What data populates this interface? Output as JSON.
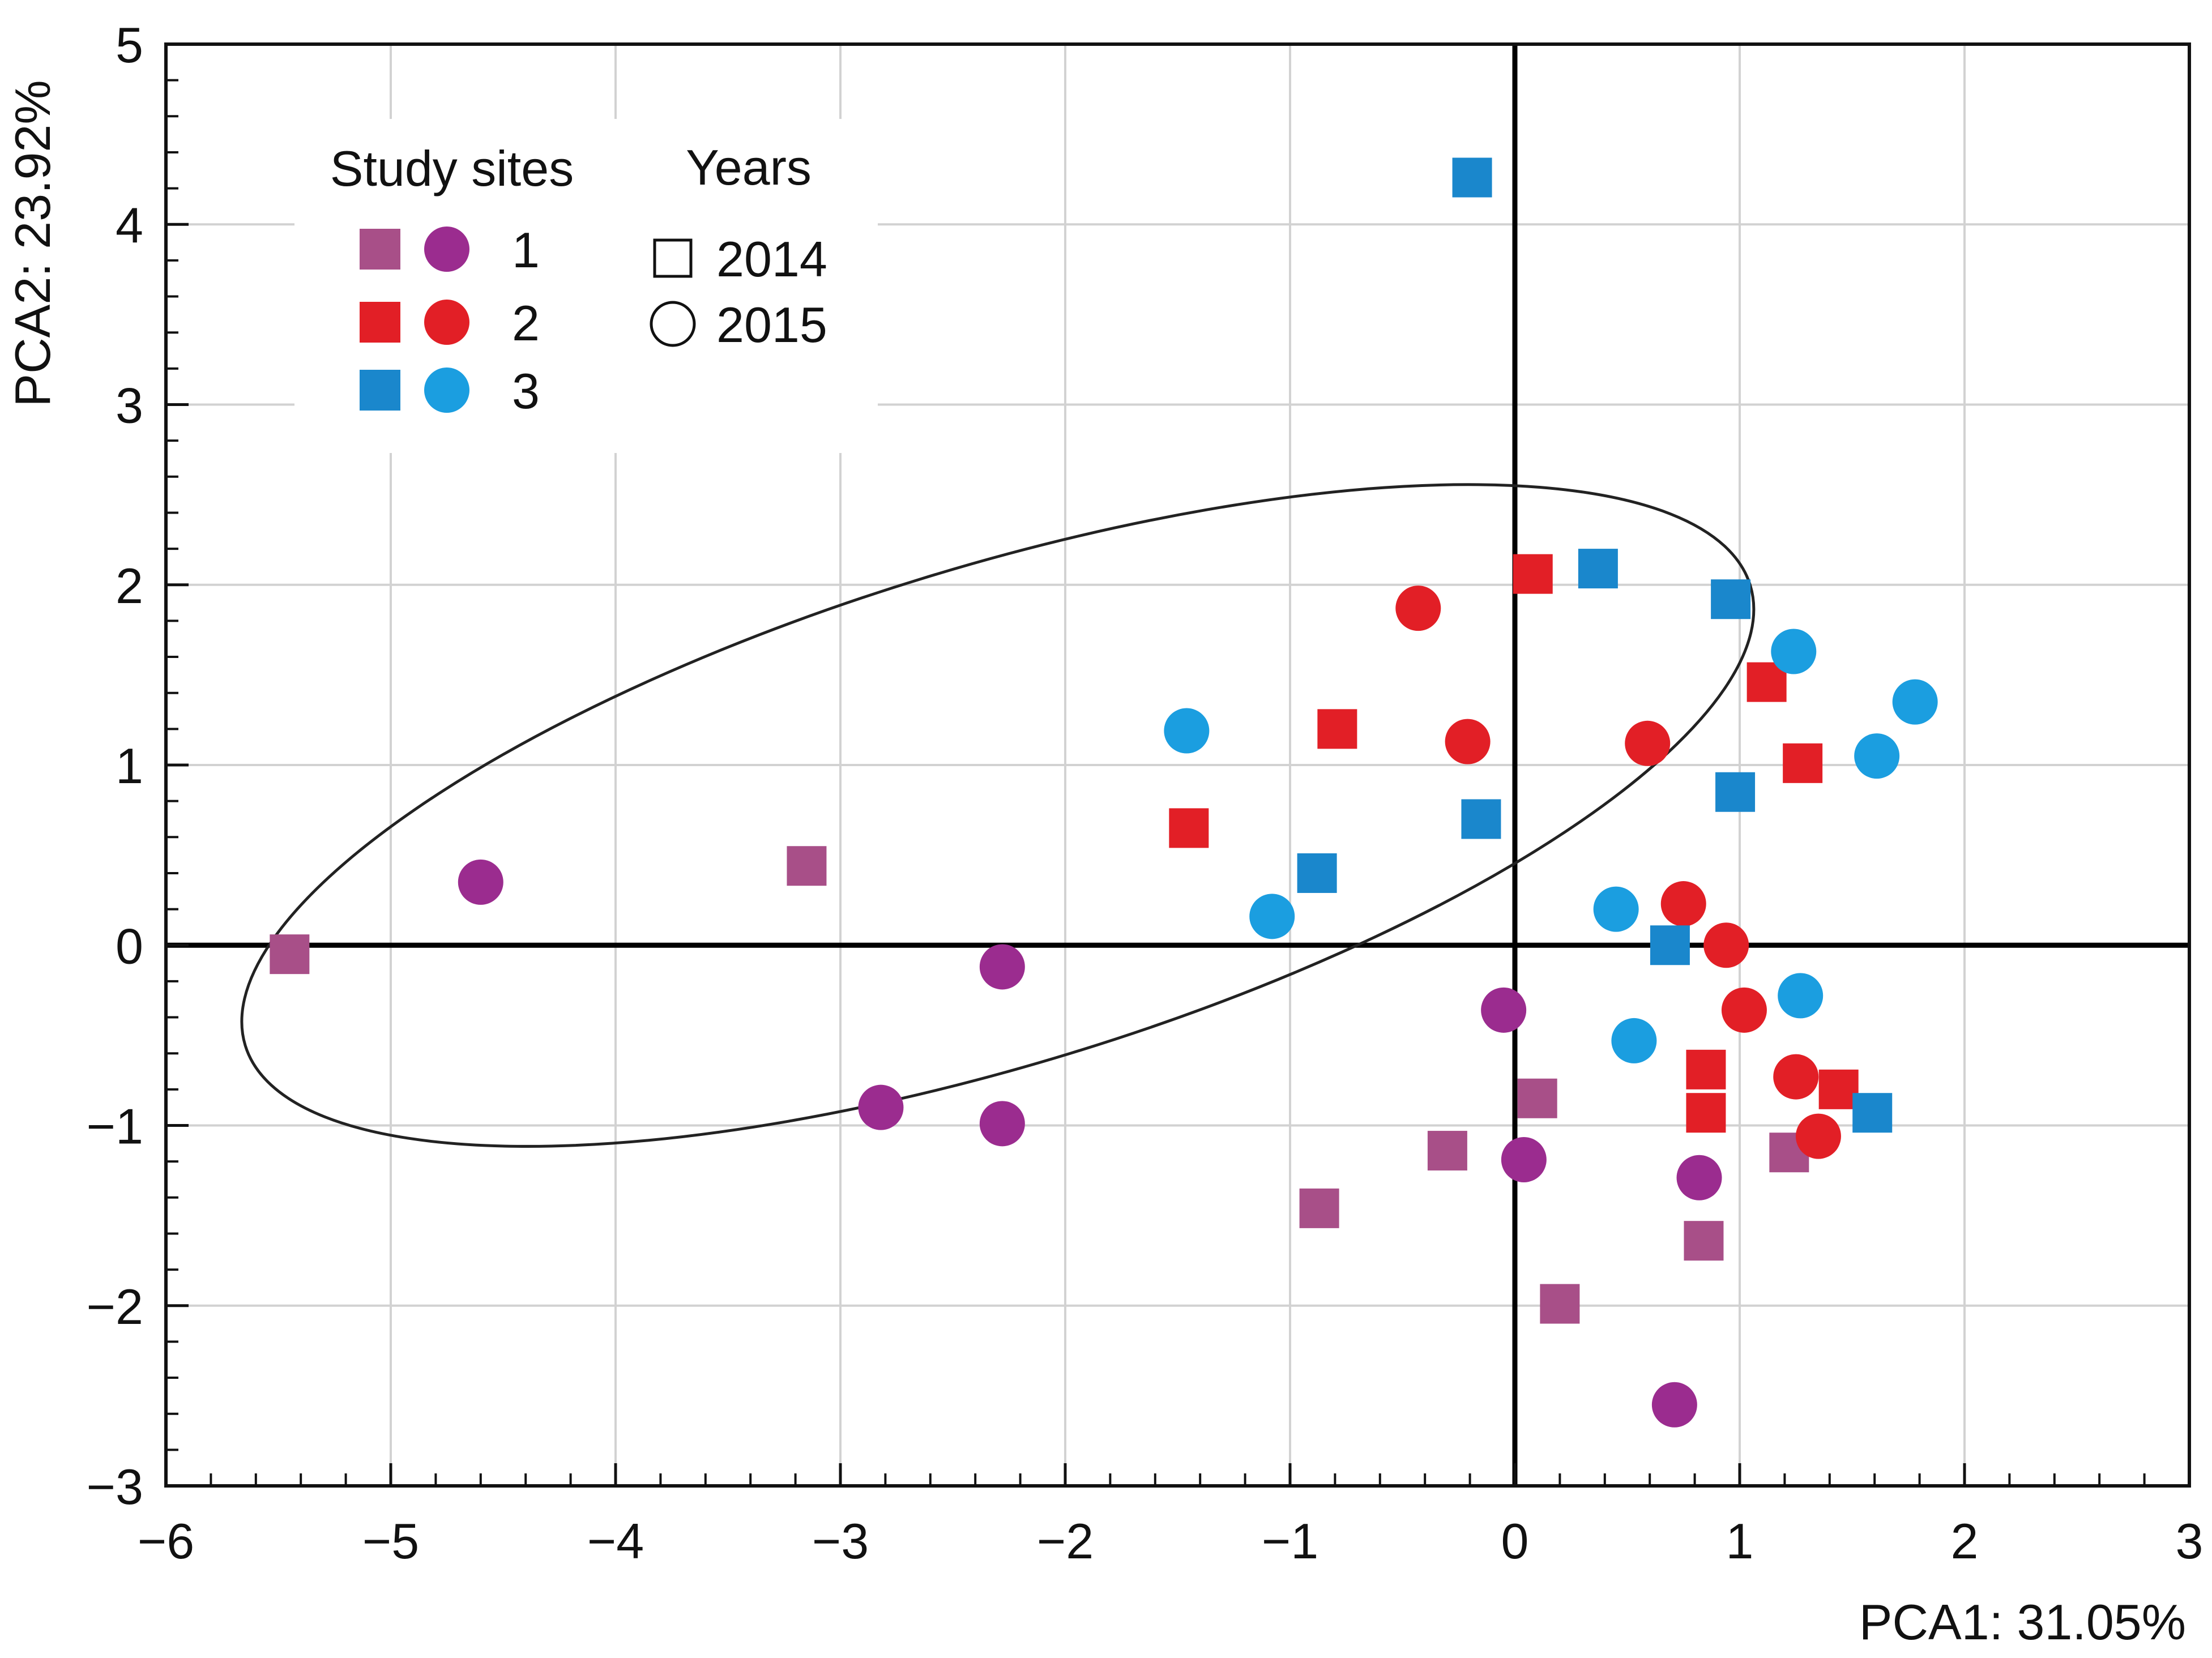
{
  "chart_data": {
    "type": "scatter",
    "title": "",
    "xlabel": "PCA1: 31.05%",
    "ylabel": "PCA2: 23.92%",
    "xlim": [
      -6,
      3
    ],
    "ylim": [
      -3,
      5
    ],
    "xticks": [
      -6,
      -5,
      -4,
      -3,
      -2,
      -1,
      0,
      1,
      2,
      3
    ],
    "yticks": [
      -3,
      -2,
      -1,
      0,
      1,
      2,
      3,
      4,
      5
    ],
    "xtick_labels": [
      "−6",
      "−5",
      "−4",
      "−3",
      "−2",
      "−1",
      "0",
      "1",
      "2",
      "3"
    ],
    "ytick_labels": [
      "−3",
      "−2",
      "−1",
      "0",
      "1",
      "2",
      "3",
      "4",
      "5"
    ],
    "grid": true,
    "colors": {
      "site1_square": "#a84f88",
      "site1_circle": "#9b2c8f",
      "site2": "#e21f26",
      "site3_square": "#1a87cc",
      "site3_circle": "#1b9ee0",
      "ellipse": "#222222",
      "axis": "#000000",
      "grid": "#d2d2d2"
    },
    "ellipse": {
      "center": [
        -2.3,
        0.72
      ],
      "semi_axes": [
        3.5,
        1.38
      ],
      "rotation_deg": 17
    },
    "legend": {
      "position": "top-left",
      "sites_title": "Study sites",
      "years_title": "Years",
      "sites": [
        {
          "label": "1",
          "square_color": "#a84f88",
          "circle_color": "#9b2c8f"
        },
        {
          "label": "2",
          "square_color": "#e21f26",
          "circle_color": "#e21f26"
        },
        {
          "label": "3",
          "square_color": "#1a87cc",
          "circle_color": "#1b9ee0"
        }
      ],
      "years": [
        {
          "label": "2014",
          "marker": "square"
        },
        {
          "label": "2015",
          "marker": "circle"
        }
      ]
    },
    "series": [
      {
        "name": "Site 1 – 2014",
        "site": "1",
        "year": "2014",
        "marker": "square",
        "color": "#a84f88",
        "points": [
          [
            -5.45,
            -0.05
          ],
          [
            -3.15,
            0.44
          ],
          [
            -0.87,
            -1.46
          ],
          [
            -0.3,
            -1.14
          ],
          [
            0.1,
            -0.85
          ],
          [
            0.2,
            -1.99
          ],
          [
            0.84,
            -1.64
          ],
          [
            1.22,
            -1.15
          ]
        ]
      },
      {
        "name": "Site 1 – 2015",
        "site": "1",
        "year": "2015",
        "marker": "circle",
        "color": "#9b2c8f",
        "points": [
          [
            -4.6,
            0.35
          ],
          [
            -2.82,
            -0.9
          ],
          [
            -2.28,
            -0.12
          ],
          [
            -2.28,
            -0.99
          ],
          [
            -0.05,
            -0.36
          ],
          [
            0.04,
            -1.19
          ],
          [
            0.82,
            -1.29
          ],
          [
            0.71,
            -2.55
          ]
        ]
      },
      {
        "name": "Site 2 – 2014",
        "site": "2",
        "year": "2014",
        "marker": "square",
        "color": "#e21f26",
        "points": [
          [
            0.08,
            2.06
          ],
          [
            -0.79,
            1.2
          ],
          [
            -1.45,
            0.65
          ],
          [
            1.12,
            1.46
          ],
          [
            1.28,
            1.01
          ],
          [
            0.85,
            -0.69
          ],
          [
            0.85,
            -0.93
          ],
          [
            1.44,
            -0.8
          ]
        ]
      },
      {
        "name": "Site 2 – 2015",
        "site": "2",
        "year": "2015",
        "marker": "circle",
        "color": "#e21f26",
        "points": [
          [
            -0.43,
            1.87
          ],
          [
            -0.21,
            1.13
          ],
          [
            0.59,
            1.12
          ],
          [
            0.75,
            0.23
          ],
          [
            0.94,
            0.0
          ],
          [
            1.02,
            -0.36
          ],
          [
            1.25,
            -0.73
          ],
          [
            1.35,
            -1.06
          ]
        ]
      },
      {
        "name": "Site 3 – 2014",
        "site": "3",
        "year": "2014",
        "marker": "square",
        "color": "#1a87cc",
        "points": [
          [
            -0.19,
            4.26
          ],
          [
            0.37,
            2.09
          ],
          [
            0.96,
            1.92
          ],
          [
            0.98,
            0.85
          ],
          [
            -0.15,
            0.7
          ],
          [
            -0.88,
            0.4
          ],
          [
            0.69,
            0.0
          ],
          [
            1.59,
            -0.93
          ]
        ]
      },
      {
        "name": "Site 3 – 2015",
        "site": "3",
        "year": "2015",
        "marker": "circle",
        "color": "#1b9ee0",
        "points": [
          [
            -1.46,
            1.19
          ],
          [
            -1.08,
            0.16
          ],
          [
            1.24,
            1.63
          ],
          [
            1.61,
            1.05
          ],
          [
            1.78,
            1.35
          ],
          [
            0.45,
            0.2
          ],
          [
            0.53,
            -0.53
          ],
          [
            1.27,
            -0.28
          ]
        ]
      }
    ]
  }
}
